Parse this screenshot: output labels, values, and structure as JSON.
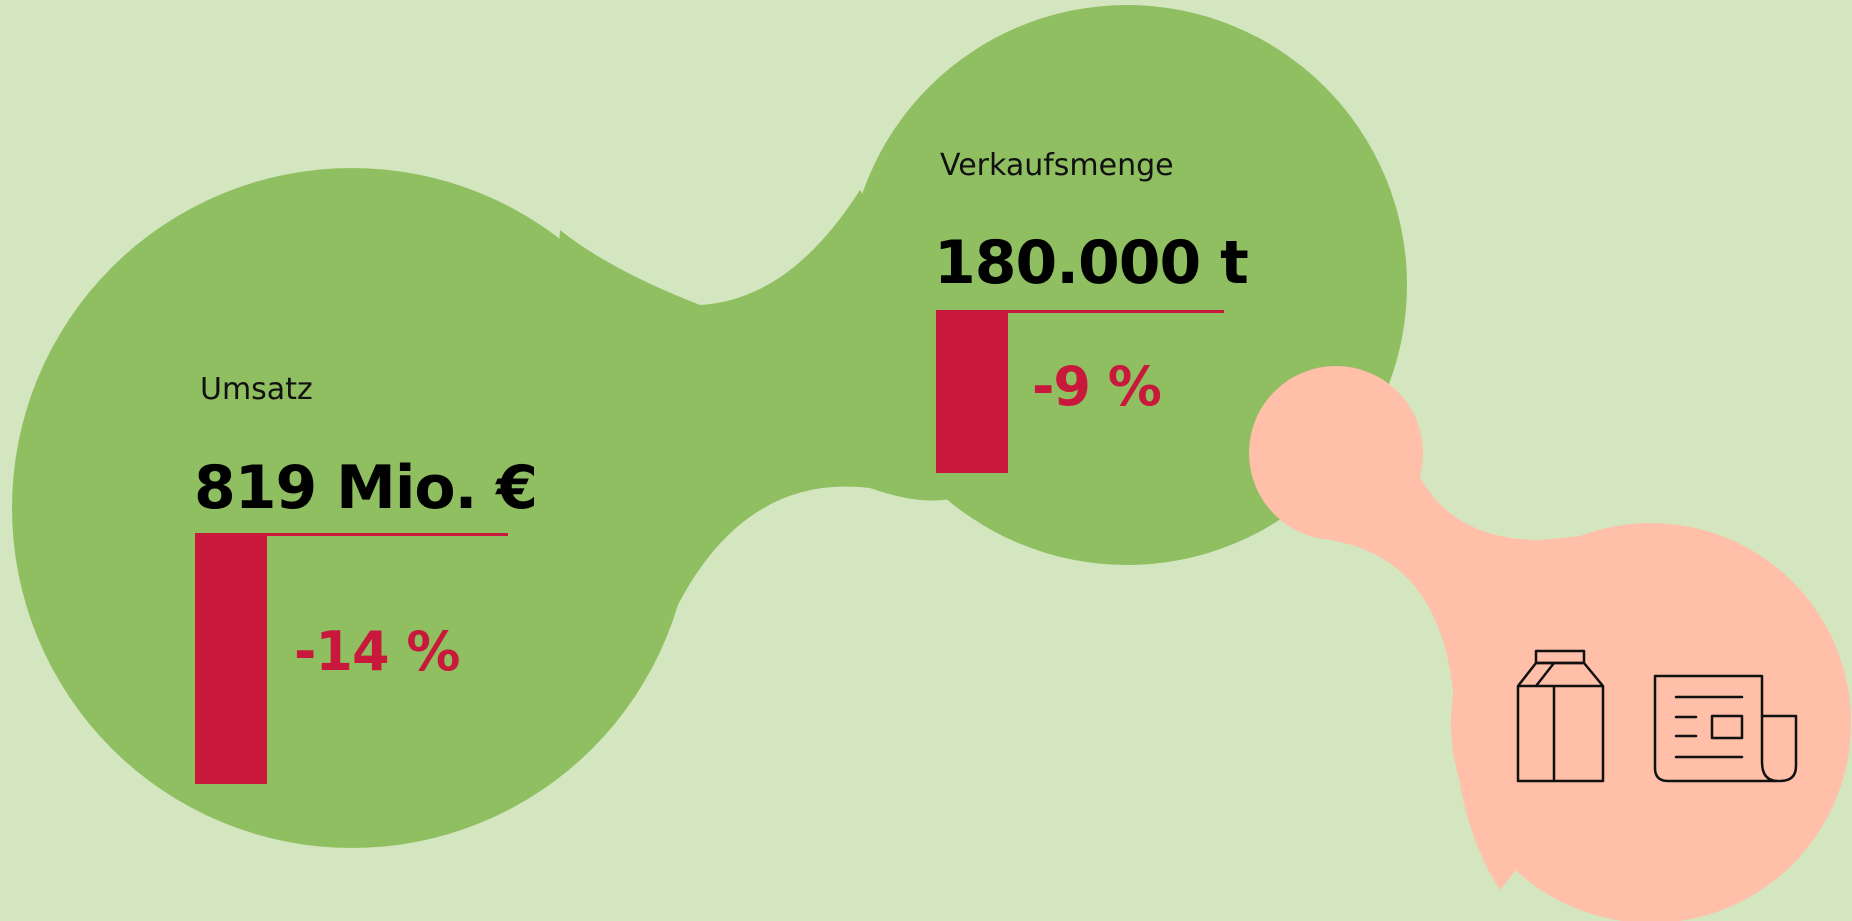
{
  "colors": {
    "background": "#d3e6c0",
    "green_blob": "#8fbf60",
    "peach_blob": "#ffbfa8",
    "accent_red": "#c8193c",
    "text_dark": "#000000",
    "icon_stroke": "#111111"
  },
  "revenue": {
    "label": "Umsatz",
    "value": "819 Mio. €",
    "change": "-14 %",
    "change_value": -14
  },
  "volume": {
    "label": "Verkaufsmenge",
    "value": "180.000 t",
    "change": "-9 %",
    "change_value": -9
  },
  "icons": [
    "milk-carton-icon",
    "newspaper-icon"
  ]
}
